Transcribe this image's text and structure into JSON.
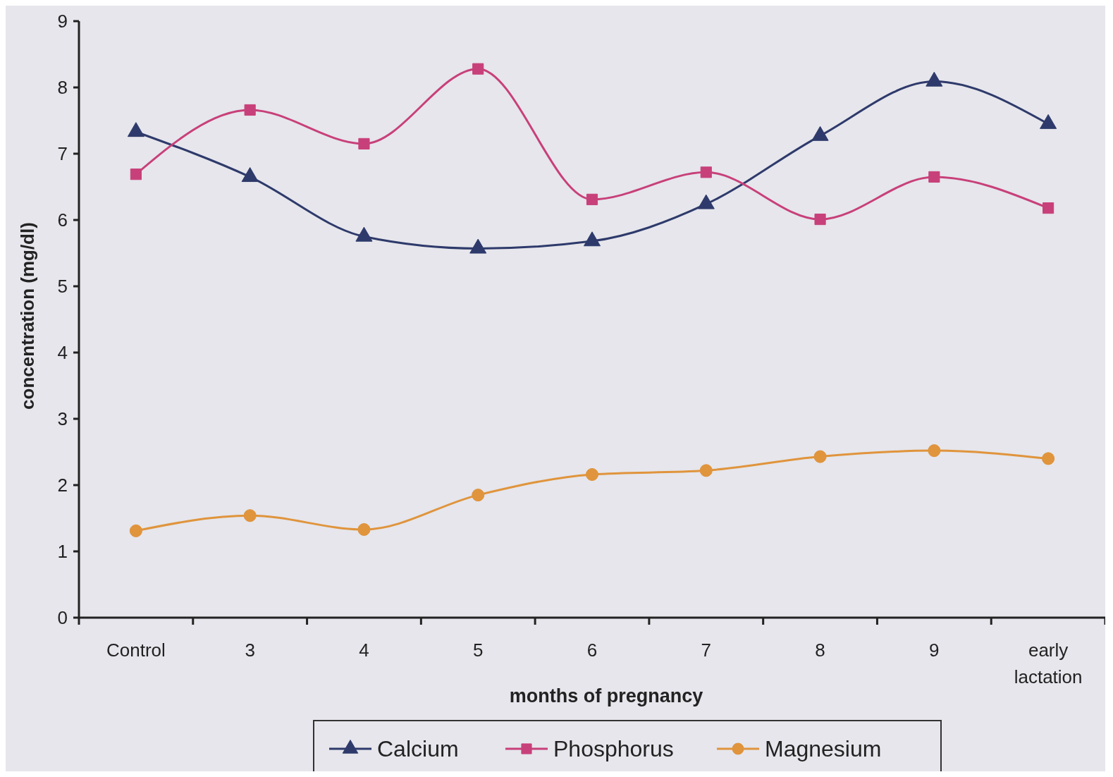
{
  "chart_data": {
    "type": "line",
    "xlabel": "months of pregnancy",
    "ylabel": "concentration (mg/dl)",
    "categories": [
      "Control",
      "3",
      "4",
      "5",
      "6",
      "7",
      "8",
      "9",
      "early lactation"
    ],
    "series": [
      {
        "name": "Calcium",
        "color": "#2e3a6b",
        "marker": "triangle",
        "values": [
          7.33,
          6.65,
          5.75,
          5.57,
          5.68,
          6.24,
          7.27,
          8.09,
          7.45
        ]
      },
      {
        "name": "Phosphorus",
        "color": "#c8407a",
        "marker": "square",
        "values": [
          6.69,
          7.66,
          7.15,
          8.28,
          6.31,
          6.72,
          6.01,
          6.65,
          6.18
        ]
      },
      {
        "name": "Magnesium",
        "color": "#e0943c",
        "marker": "circle",
        "values": [
          1.31,
          1.54,
          1.33,
          1.85,
          2.16,
          2.22,
          2.43,
          2.52,
          2.4
        ]
      }
    ],
    "ylim": [
      0,
      9
    ],
    "yticks": [
      0,
      1,
      2,
      3,
      4,
      5,
      6,
      7,
      8,
      9
    ],
    "grid": false,
    "legend": "bottom",
    "line_style": "solid"
  }
}
